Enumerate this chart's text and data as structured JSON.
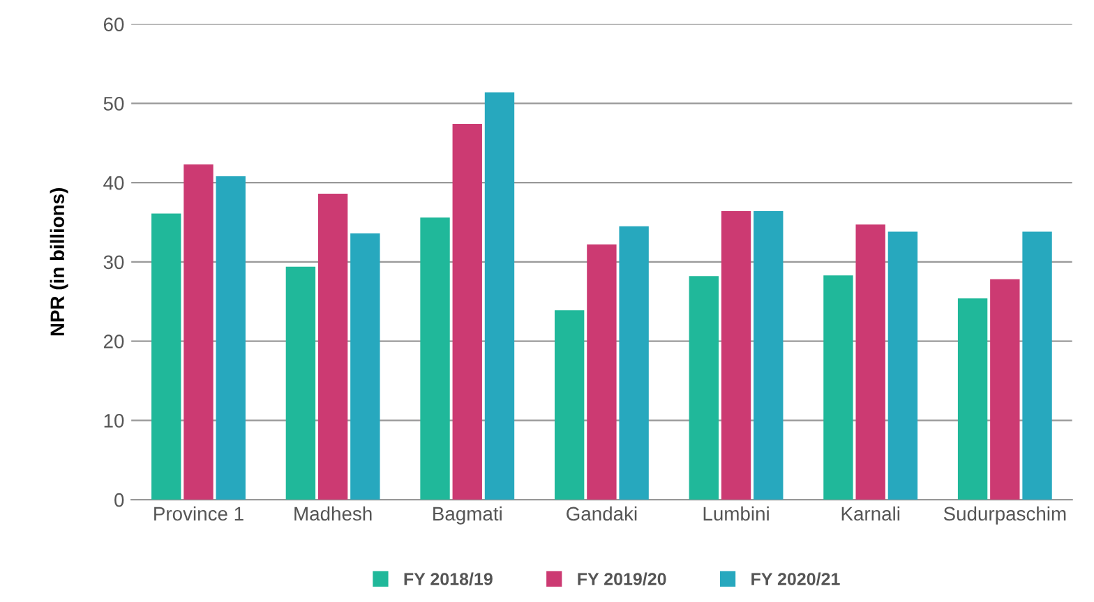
{
  "chart_data": {
    "type": "bar",
    "ylabel": "NPR (in billions)",
    "categories": [
      "Province 1",
      "Madhesh",
      "Bagmati",
      "Gandaki",
      "Lumbini",
      "Karnali",
      "Sudurpaschim"
    ],
    "series": [
      {
        "name": "FY 2018/19",
        "color": "#20b89a",
        "values": [
          36.1,
          29.4,
          35.6,
          23.9,
          28.2,
          28.3,
          25.4
        ]
      },
      {
        "name": "FY 2019/20",
        "color": "#cc3a72",
        "values": [
          42.3,
          38.6,
          47.4,
          32.2,
          36.4,
          34.7,
          27.8
        ]
      },
      {
        "name": "FY 2020/21",
        "color": "#27a8be",
        "values": [
          40.8,
          33.6,
          51.4,
          34.5,
          36.4,
          33.8,
          33.8
        ]
      }
    ],
    "ylim": [
      0,
      60
    ],
    "yticks": [
      0,
      10,
      20,
      30,
      40,
      50,
      60
    ],
    "grid": "y",
    "legend": "bottom"
  }
}
